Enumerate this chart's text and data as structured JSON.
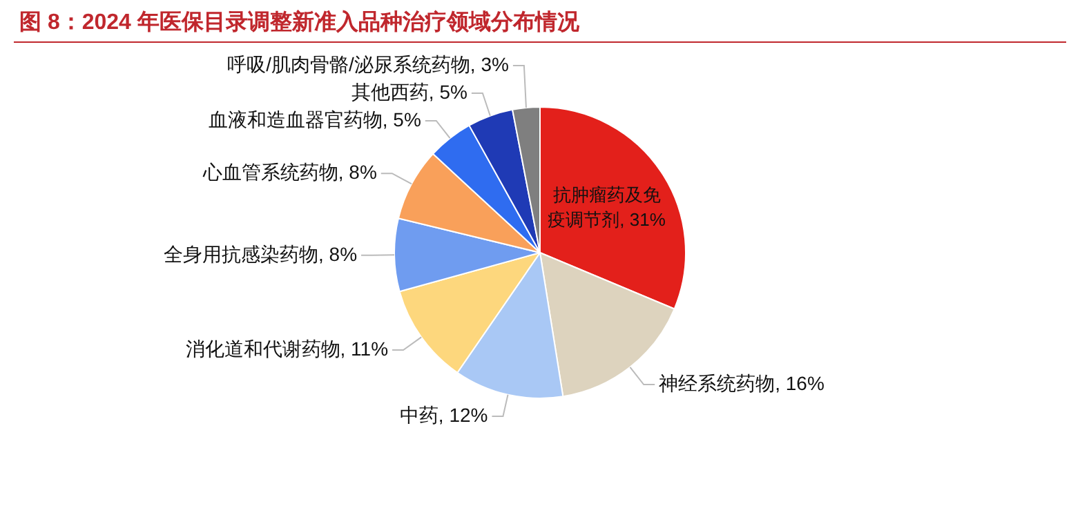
{
  "chart_data": {
    "type": "pie",
    "title": "图 8：2024 年医保目录调整新准入品种治疗领域分布情况",
    "categories": [
      "抗肿瘤药及免疫调节剂",
      "神经系统药物",
      "中药",
      "消化道和代谢药物",
      "全身用抗感染药物",
      "心血管系统药物",
      "血液和造血器官药物",
      "其他西药",
      "呼吸/肌肉骨骼/泌尿系统药物"
    ],
    "values": [
      31,
      16,
      12,
      11,
      8,
      8,
      5,
      5,
      3
    ],
    "colors": [
      "#e3201b",
      "#ddd3be",
      "#a9c8f5",
      "#fdd77d",
      "#6f9cf0",
      "#f9a05a",
      "#2f6cf0",
      "#1f3ab5",
      "#7f7f7f"
    ],
    "value_labels": [
      "31%",
      "16%",
      "12%",
      "11%",
      "8%",
      "8%",
      "5%",
      "5%",
      "3%"
    ],
    "legend": false
  }
}
